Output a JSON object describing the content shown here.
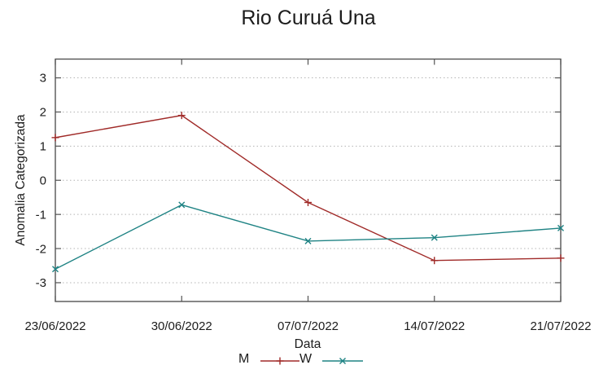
{
  "chart_data": {
    "type": "line",
    "title": "Rio Curuá Una",
    "xlabel": "Data",
    "ylabel": "Anomalia Categorizada",
    "categories": [
      "23/06/2022",
      "30/06/2022",
      "07/07/2022",
      "14/07/2022",
      "21/07/2022"
    ],
    "series": [
      {
        "name": "M",
        "marker": "plus",
        "color": "#a02a28",
        "values": [
          1.25,
          1.9,
          -0.65,
          -2.35,
          -2.28
        ]
      },
      {
        "name": "W",
        "marker": "cross",
        "color": "#1f8384",
        "values": [
          -2.6,
          -0.72,
          -1.78,
          -1.68,
          -1.4
        ]
      }
    ],
    "yticks": [
      -3,
      -2,
      -1,
      0,
      1,
      2,
      3
    ],
    "ylim": [
      -3.55,
      3.55
    ],
    "grid": "horizontal dotted",
    "legend_position": "bottom-center",
    "colors": {
      "axis": "#545454",
      "grid": "#b4b4b4",
      "text": "#1c1c1c",
      "background": "#ffffff"
    }
  }
}
